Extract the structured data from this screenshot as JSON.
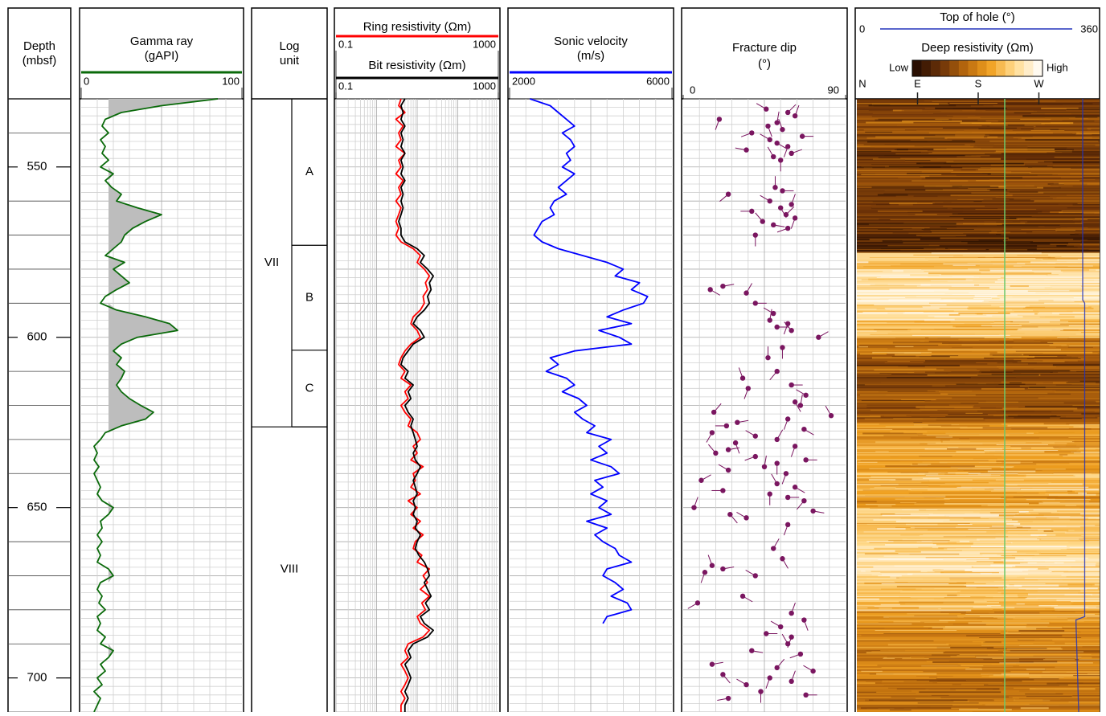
{
  "chart_data": [
    {
      "type": "depth",
      "title_lines": [
        "Depth",
        "(mbsf)"
      ],
      "ylim": [
        530,
        710
      ],
      "yticks": [
        550,
        600,
        650,
        700
      ],
      "y": [
        530,
        532,
        534,
        536,
        538,
        540,
        542,
        544,
        546,
        548,
        550,
        552,
        554,
        556,
        558,
        560,
        562,
        564,
        566,
        568,
        570,
        572,
        574,
        576,
        578,
        580,
        582,
        584,
        586,
        588,
        590,
        592,
        594,
        596,
        598,
        600,
        602,
        604,
        606,
        608,
        610,
        612,
        614,
        616,
        618,
        620,
        622,
        624,
        626,
        628,
        630,
        632,
        634,
        636,
        638,
        640,
        642,
        644,
        646,
        648,
        650,
        652,
        654,
        656,
        658,
        660,
        662,
        664,
        666,
        668,
        670,
        672,
        674,
        676,
        678,
        680,
        682,
        684,
        686,
        688,
        690,
        692,
        694,
        696,
        698,
        700,
        702,
        704,
        706,
        708,
        710
      ]
    },
    {
      "type": "line",
      "title_lines": [
        "Gamma ray",
        "(gAPI)"
      ],
      "color": "#0a6a0a",
      "xlim": [
        0,
        100
      ],
      "xticks": [
        0,
        100
      ],
      "fill_cutoff": 17,
      "fill_color": "#bdbdbd",
      "values": [
        85,
        50,
        25,
        15,
        13,
        17,
        12,
        15,
        13,
        17,
        12,
        20,
        15,
        19,
        25,
        22,
        35,
        50,
        40,
        32,
        27,
        25,
        20,
        15,
        27,
        20,
        25,
        30,
        22,
        15,
        12,
        22,
        40,
        55,
        60,
        35,
        25,
        20,
        25,
        22,
        27,
        25,
        22,
        25,
        30,
        37,
        45,
        40,
        25,
        15,
        12,
        8,
        10,
        8,
        11,
        8,
        10,
        12,
        10,
        13,
        20,
        17,
        12,
        13,
        10,
        13,
        10,
        12,
        10,
        17,
        20,
        12,
        10,
        13,
        11,
        15,
        10,
        12,
        10,
        15,
        12,
        20,
        17,
        12,
        15,
        10,
        13,
        8,
        12,
        10,
        8
      ]
    },
    {
      "type": "intervals",
      "title_lines": [
        "Log",
        "unit"
      ],
      "units": [
        {
          "label": "VII",
          "top": 530,
          "base": 626.3
        },
        {
          "label": "VIII",
          "top": 626.3,
          "base": 710
        }
      ],
      "subunits": [
        {
          "label": "A",
          "top": 530,
          "base": 573
        },
        {
          "label": "B",
          "top": 573,
          "base": 603.8
        },
        {
          "label": "C",
          "top": 603.8,
          "base": 626.3
        }
      ]
    },
    {
      "type": "line",
      "log_scale": true,
      "xlim": [
        0.1,
        1000
      ],
      "xticks": [
        0.1,
        1000
      ],
      "series": [
        {
          "name": "Ring resistivity (Ωm)",
          "color": "#ff0000",
          "values": [
            4,
            3.5,
            5,
            3,
            4.5,
            3.5,
            4,
            3,
            5,
            3.5,
            4,
            3,
            4.5,
            3.5,
            4,
            3,
            4,
            3.5,
            3,
            3.5,
            3,
            4,
            8,
            12,
            10,
            15,
            20,
            16,
            18,
            14,
            15,
            12,
            8,
            7,
            10,
            12,
            7,
            5,
            4,
            3.5,
            5,
            4,
            7,
            5,
            6,
            4,
            5,
            7,
            6,
            10,
            12,
            8,
            10,
            7,
            14,
            8,
            9,
            7,
            12,
            6,
            10,
            7,
            12,
            8,
            14,
            9,
            8,
            13,
            10,
            20,
            14,
            18,
            12,
            20,
            13,
            16,
            10,
            12,
            20,
            14,
            6,
            5,
            6,
            4,
            5,
            6,
            5,
            4,
            5,
            4,
            4
          ]
        },
        {
          "name": "Bit resistivity (Ωm)",
          "color": "#000000",
          "values": [
            5,
            4,
            4.5,
            4,
            5,
            4,
            4.5,
            4,
            5,
            4,
            4.5,
            4,
            5,
            4,
            4.5,
            4,
            4.5,
            4,
            3.5,
            4,
            4,
            5,
            10,
            15,
            12,
            18,
            25,
            20,
            22,
            18,
            20,
            15,
            10,
            8,
            12,
            15,
            8,
            6,
            4.5,
            4,
            6,
            5,
            8,
            6,
            7,
            5,
            6,
            8,
            7,
            8,
            9,
            10,
            8,
            9,
            12,
            10,
            8,
            9,
            10,
            8,
            9,
            8,
            10,
            9,
            12,
            10,
            9,
            11,
            15,
            18,
            20,
            15,
            18,
            22,
            16,
            20,
            12,
            15,
            25,
            18,
            8,
            6,
            7,
            5,
            6,
            7,
            6,
            5,
            6,
            5,
            5
          ]
        }
      ]
    },
    {
      "type": "line",
      "title_lines": [
        "Sonic velocity",
        "(m/s)"
      ],
      "color": "#0000ff",
      "xlim": [
        2000,
        6000
      ],
      "xticks": [
        2000,
        6000
      ],
      "values": [
        2500,
        3000,
        3200,
        3400,
        3600,
        3300,
        3500,
        3600,
        3400,
        3500,
        3300,
        3600,
        3400,
        3200,
        3400,
        3100,
        3000,
        3100,
        2800,
        2700,
        2600,
        2800,
        3200,
        3800,
        4400,
        4800,
        4600,
        5200,
        5000,
        5400,
        5300,
        4800,
        4400,
        5000,
        4200,
        4700,
        5000,
        3600,
        3000,
        3200,
        2900,
        3400,
        3600,
        3300,
        3700,
        3900,
        3600,
        3800,
        4100,
        3900,
        4500,
        4200,
        4400,
        4000,
        4500,
        4700,
        4100,
        4300,
        4000,
        4400,
        4200,
        4500,
        3900,
        4400,
        4100,
        4300,
        4600,
        4700,
        5000,
        4400,
        4300,
        4600,
        4800,
        4500,
        4900,
        5000,
        4400,
        4300,
        null,
        null,
        null,
        null,
        null,
        null,
        null,
        null,
        null,
        null,
        null,
        null,
        null
      ]
    },
    {
      "type": "tadpole",
      "title_lines": [
        "Fracture dip",
        "(°)"
      ],
      "color": "#7a1660",
      "xlim": [
        0,
        90
      ],
      "xticks": [
        0,
        90
      ],
      "values": [
        46,
        58,
        62,
        20,
        52,
        47,
        55,
        38,
        66,
        48,
        52,
        58,
        35,
        60,
        50,
        54,
        51,
        55,
        25,
        48,
        60,
        54,
        38,
        57,
        62,
        44,
        50,
        58,
        40,
        22,
        15,
        35,
        40,
        50,
        48,
        58,
        52,
        60,
        75,
        55,
        47,
        52,
        33,
        60,
        36,
        68,
        62,
        65,
        17,
        82,
        58,
        30,
        24,
        67,
        16,
        40,
        52,
        29,
        62,
        25,
        18,
        40,
        68,
        52,
        45,
        25,
        57,
        10,
        52,
        62,
        22,
        48,
        58,
        67,
        6,
        72,
        26,
        35,
        58,
        50,
        55,
        16,
        22,
        12,
        40,
        33,
        8,
        60,
        67,
        54,
        46,
        60,
        58,
        38,
        65,
        16,
        52,
        72,
        22,
        48,
        60,
        35,
        43,
        68,
        25
      ],
      "y": [
        533,
        534,
        535,
        536,
        537,
        538,
        539,
        540,
        541,
        542,
        543,
        544,
        545,
        546,
        547,
        548,
        556,
        557,
        558,
        560,
        561,
        562,
        563,
        564,
        565,
        566,
        567,
        568,
        570,
        585,
        586,
        587,
        590,
        593,
        595,
        596,
        597,
        598,
        600,
        603,
        606,
        610,
        612,
        614,
        615,
        617,
        619,
        620,
        622,
        623,
        624,
        625,
        626,
        627,
        628,
        629,
        630,
        631,
        632,
        633,
        634,
        635,
        636,
        637,
        638,
        639,
        640,
        642,
        643,
        644,
        645,
        646,
        647,
        648,
        650,
        651,
        652,
        653,
        655,
        662,
        665,
        667,
        668,
        669,
        670,
        676,
        678,
        681,
        683,
        685,
        687,
        688,
        690,
        692,
        693,
        696,
        697,
        698,
        699,
        700,
        701,
        702,
        704,
        705,
        706
      ],
      "azimuth": [
        300,
        45,
        20,
        200,
        10,
        160,
        340,
        250,
        90,
        300,
        120,
        200,
        280,
        70,
        330,
        180,
        0,
        90,
        230,
        300,
        20,
        150,
        270,
        45,
        200,
        320,
        100,
        250,
        180,
        80,
        120,
        30,
        90,
        300,
        10,
        200,
        90,
        320,
        60,
        180,
        0,
        220,
        340,
        90,
        200,
        300,
        150,
        10,
        40,
        330,
        200,
        80,
        270,
        120,
        210,
        300,
        30,
        160,
        200,
        80,
        320,
        250,
        90,
        180,
        10,
        300,
        200,
        60,
        330,
        120,
        270,
        180,
        90,
        220,
        20,
        100,
        140,
        300,
        200,
        30,
        150,
        340,
        80,
        200,
        300,
        120,
        240,
        20,
        160,
        300,
        90,
        200,
        330,
        100,
        250,
        80,
        40,
        300,
        140,
        200,
        20,
        300,
        180,
        90,
        260
      ]
    },
    {
      "type": "image",
      "title": "Deep resistivity (Ωm)",
      "low_label": "Low",
      "high_label": "High",
      "colormap": [
        "#2a0f02",
        "#6b3208",
        "#b8680d",
        "#f0a020",
        "#ffd98a",
        "#fffaf0"
      ],
      "xlim": [
        0,
        360
      ],
      "xticks": [
        {
          "value": 0,
          "label": "N"
        },
        {
          "value": 90,
          "label": "E"
        },
        {
          "value": 180,
          "label": "S"
        },
        {
          "value": 270,
          "label": "W"
        }
      ],
      "depth_edges": [
        530,
        535,
        540,
        545,
        550,
        555,
        560,
        565,
        570,
        575,
        580,
        585,
        590,
        595,
        600,
        605,
        610,
        615,
        620,
        625,
        630,
        635,
        640,
        645,
        650,
        655,
        660,
        665,
        670,
        675,
        680,
        685,
        690,
        695,
        700,
        705,
        710
      ],
      "levels": [
        0.22,
        0.3,
        0.25,
        0.2,
        0.3,
        0.25,
        0.2,
        0.2,
        0.12,
        0.75,
        0.85,
        0.9,
        0.8,
        0.7,
        0.45,
        0.3,
        0.25,
        0.35,
        0.3,
        0.55,
        0.65,
        0.6,
        0.7,
        0.6,
        0.75,
        0.7,
        0.8,
        0.85,
        0.75,
        0.7,
        0.55,
        0.5,
        0.45,
        0.5,
        0.4,
        0.45
      ],
      "top_of_hole": {
        "name": "Top of hole (°)",
        "color": "#2233bb",
        "xticks": [
          0,
          360
        ],
        "y": [
          530,
          589,
          590,
          682,
          683,
          710
        ],
        "values": [
          335,
          335,
          338,
          338,
          325,
          329
        ]
      }
    }
  ]
}
